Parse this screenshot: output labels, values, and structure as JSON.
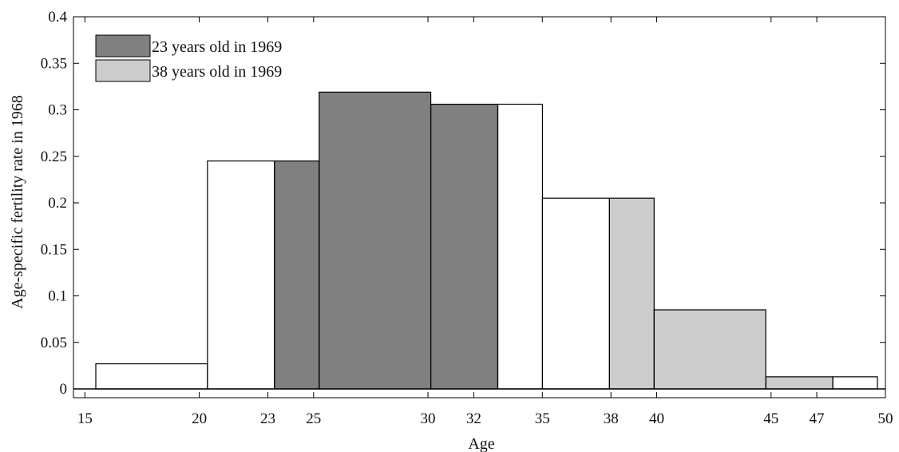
{
  "chart_data": {
    "type": "bar",
    "xlabel": "Age",
    "ylabel": "Age-specific fertility rate in 1968",
    "xlim": [
      14.5,
      50
    ],
    "ylim": [
      0,
      0.4
    ],
    "x_ticks": [
      15,
      20,
      23,
      25,
      30,
      32,
      35,
      38,
      40,
      45,
      47,
      50
    ],
    "y_ticks": [
      0,
      0.05,
      0.1,
      0.15,
      0.2,
      0.25,
      0.3,
      0.35,
      0.4
    ],
    "y_tick_labels": [
      "0",
      "0.05",
      "0.1",
      "0.15",
      "0.2",
      "0.25",
      "0.3",
      "0.35",
      "0.4"
    ],
    "grid": false,
    "legend_position": "top-left",
    "bins": [
      {
        "x_start": 14.5,
        "x_end": 19.5,
        "value": 0.027
      },
      {
        "x_start": 19.5,
        "x_end": 22.5,
        "value": 0.245
      },
      {
        "x_start": 22.5,
        "x_end": 24.5,
        "value": 0.245
      },
      {
        "x_start": 24.5,
        "x_end": 29.5,
        "value": 0.319
      },
      {
        "x_start": 29.5,
        "x_end": 32.5,
        "value": 0.306
      },
      {
        "x_start": 32.5,
        "x_end": 34.5,
        "value": 0.306
      },
      {
        "x_start": 34.5,
        "x_end": 37.5,
        "value": 0.205
      },
      {
        "x_start": 37.5,
        "x_end": 39.5,
        "value": 0.205
      },
      {
        "x_start": 39.5,
        "x_end": 44.5,
        "value": 0.085
      },
      {
        "x_start": 44.5,
        "x_end": 47.5,
        "value": 0.013
      },
      {
        "x_start": 47.5,
        "x_end": 49.5,
        "value": 0.013
      }
    ],
    "series": [
      {
        "name": "23 years old in 1969",
        "color": "#808080",
        "x_range": [
          22.5,
          32.5
        ]
      },
      {
        "name": "38 years old in 1969",
        "color": "#cccccc",
        "x_range": [
          37.5,
          47.5
        ]
      }
    ]
  }
}
